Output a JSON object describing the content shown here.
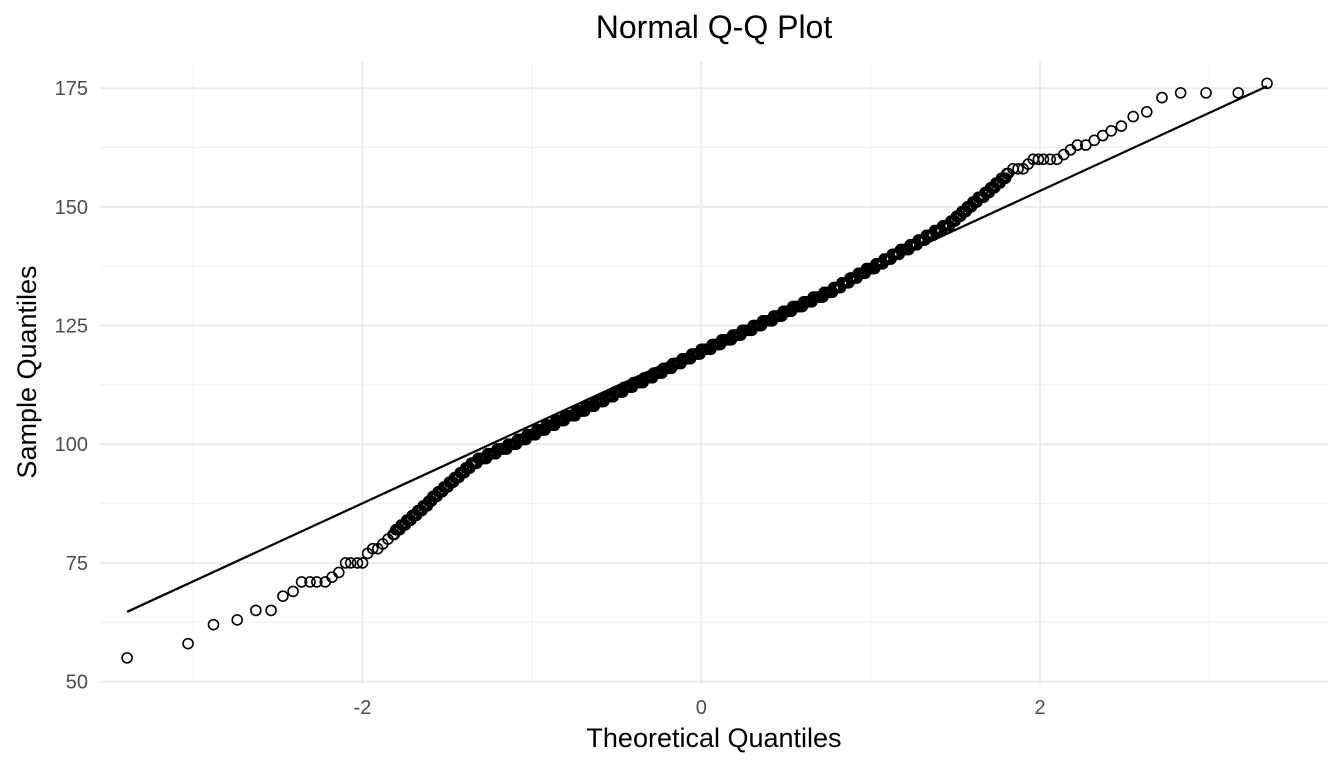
{
  "chart_data": {
    "type": "scatter",
    "title": "Normal Q-Q Plot",
    "xlabel": "Theoretical Quantiles",
    "ylabel": "Sample Quantiles",
    "xlim": [
      -3.55,
      3.7
    ],
    "ylim": [
      49.5,
      180.5
    ],
    "x_ticks": [
      -2,
      0,
      2
    ],
    "x_tick_labels": [
      "-2",
      "0",
      "2"
    ],
    "y_ticks": [
      50,
      75,
      100,
      125,
      150,
      175
    ],
    "y_tick_labels": [
      "50",
      "75",
      "100",
      "125",
      "150",
      "175"
    ],
    "grid": true,
    "n_points": 500,
    "reference_line": {
      "x": [
        -3.39,
        3.34
      ],
      "y": [
        64.7,
        175.4
      ]
    },
    "points": [
      [
        -3.39,
        55
      ],
      [
        -3.03,
        58
      ],
      [
        -2.88,
        62
      ],
      [
        -2.74,
        63
      ],
      [
        -2.63,
        65
      ],
      [
        -2.54,
        65
      ],
      [
        -2.47,
        68
      ],
      [
        -2.41,
        69
      ],
      [
        -2.36,
        71
      ],
      [
        -2.31,
        71
      ],
      [
        -2.27,
        71
      ],
      [
        -2.22,
        71
      ],
      [
        -2.18,
        72
      ],
      [
        -2.14,
        73
      ],
      [
        -2.1,
        75
      ],
      [
        -2.07,
        75
      ],
      [
        -2.03,
        75
      ],
      [
        -2.0,
        75
      ],
      [
        -1.97,
        77
      ],
      [
        -1.94,
        78
      ],
      [
        -1.91,
        78
      ],
      [
        -1.88,
        79
      ],
      [
        -1.85,
        80
      ],
      [
        1.84,
        158
      ],
      [
        1.87,
        158
      ],
      [
        1.9,
        158
      ],
      [
        1.93,
        159
      ],
      [
        1.96,
        160
      ],
      [
        1.99,
        160
      ],
      [
        2.02,
        160
      ],
      [
        2.06,
        160
      ],
      [
        2.1,
        160
      ],
      [
        2.14,
        161
      ],
      [
        2.18,
        162
      ],
      [
        2.22,
        163
      ],
      [
        2.27,
        163
      ],
      [
        2.32,
        164
      ],
      [
        2.37,
        165
      ],
      [
        2.42,
        166
      ],
      [
        2.48,
        167
      ],
      [
        2.55,
        169
      ],
      [
        2.63,
        170
      ],
      [
        2.72,
        173
      ],
      [
        2.83,
        174
      ],
      [
        2.98,
        174
      ],
      [
        3.17,
        174
      ],
      [
        3.34,
        176
      ]
    ],
    "central_segments": [
      {
        "x": [
          -1.82,
          -1.35
        ],
        "y": [
          81,
          96
        ]
      },
      {
        "x": [
          -1.35,
          -0.6
        ],
        "y": [
          96,
          109
        ]
      },
      {
        "x": [
          -0.6,
          0.0
        ],
        "y": [
          109,
          119.5
        ]
      },
      {
        "x": [
          0.0,
          0.75
        ],
        "y": [
          119.5,
          132
        ]
      },
      {
        "x": [
          0.75,
          1.45
        ],
        "y": [
          132,
          146
        ]
      },
      {
        "x": [
          1.45,
          1.82
        ],
        "y": [
          146,
          157
        ]
      }
    ]
  }
}
